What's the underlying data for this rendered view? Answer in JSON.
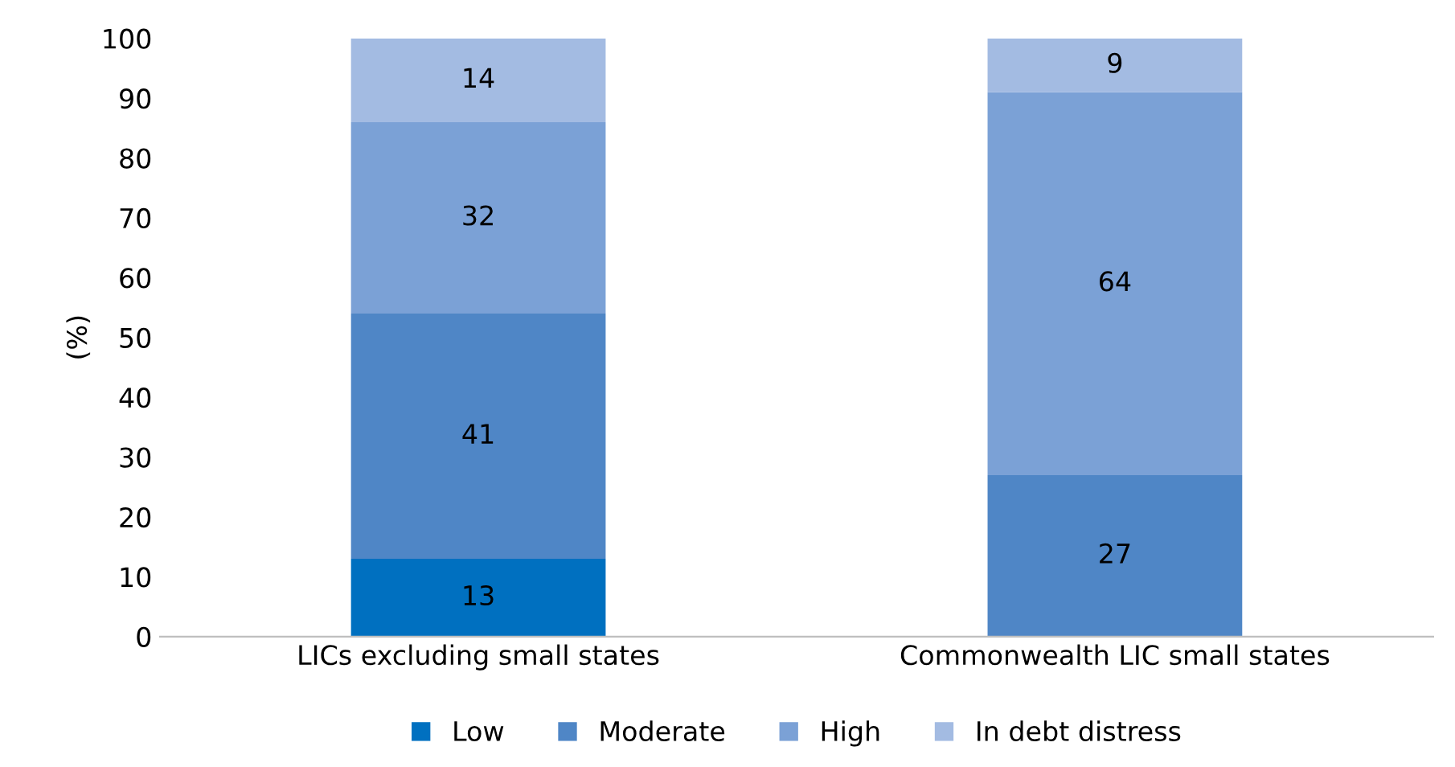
{
  "chart_data": {
    "type": "bar",
    "stacked": true,
    "ylabel": "(%)",
    "categories": [
      "LICs excluding small states",
      "Commonwealth LIC small states"
    ],
    "series": [
      {
        "name": "Low",
        "color": "#0070c0",
        "values": [
          13,
          0
        ],
        "value_labels": [
          "13",
          null
        ]
      },
      {
        "name": "Moderate",
        "color": "#4f86c6",
        "values": [
          41,
          27
        ],
        "value_labels": [
          "41",
          "27"
        ]
      },
      {
        "name": "High",
        "color": "#7ba1d6",
        "values": [
          32,
          64
        ],
        "value_labels": [
          "32",
          "64"
        ]
      },
      {
        "name": "In debt distress",
        "color": "#a3bbe2",
        "values": [
          14,
          9
        ],
        "value_labels": [
          "14",
          "9"
        ]
      }
    ],
    "ylim": [
      0,
      100
    ],
    "yticks": [
      0,
      10,
      20,
      30,
      40,
      50,
      60,
      70,
      80,
      90,
      100
    ],
    "grid": false,
    "legend": "bottom"
  }
}
